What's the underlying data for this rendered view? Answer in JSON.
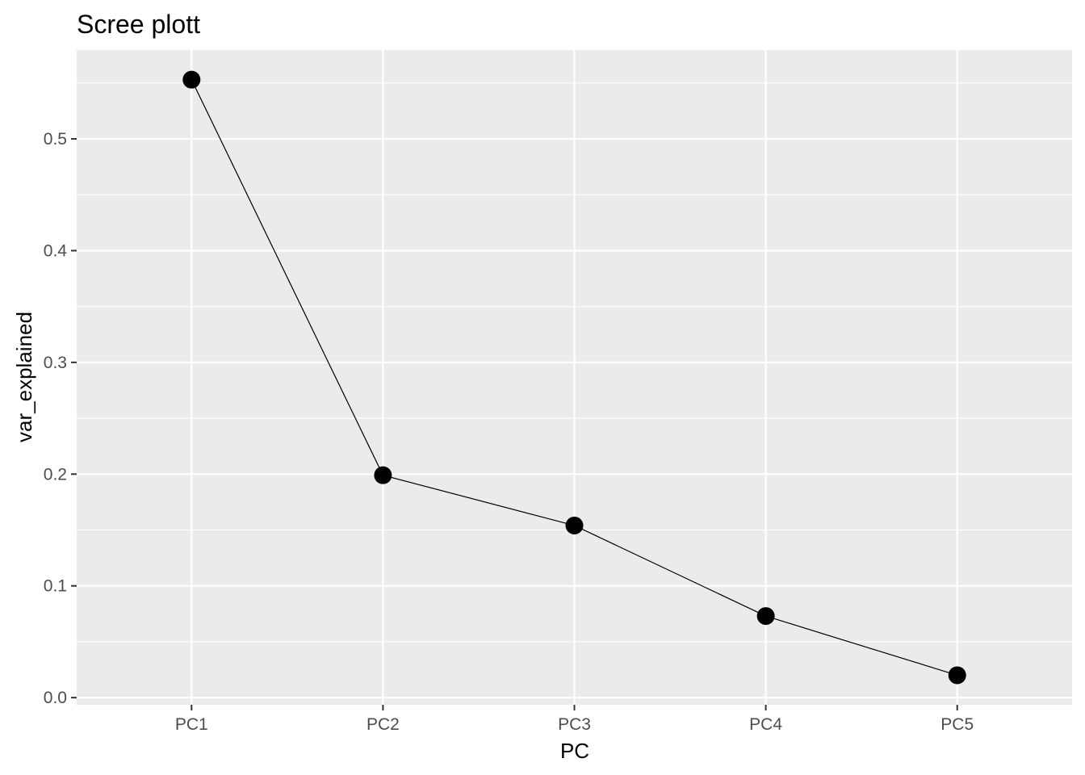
{
  "chart_data": {
    "type": "line",
    "title": "Scree plott",
    "xlabel": "PC",
    "ylabel": "var_explained",
    "categories": [
      "PC1",
      "PC2",
      "PC3",
      "PC4",
      "PC5"
    ],
    "series": [
      {
        "values": [
          0.553,
          0.199,
          0.154,
          0.073,
          0.02
        ]
      }
    ],
    "ylim": [
      -0.0064,
      0.5795
    ],
    "yticks": [
      0.0,
      0.1,
      0.2,
      0.3,
      0.4,
      0.5
    ],
    "ytick_labels": [
      "0.0",
      "0.1",
      "0.2",
      "0.3",
      "0.4",
      "0.5"
    ],
    "grid": true,
    "markers": "filled-circle",
    "colors": {
      "panel": "#ebebeb",
      "grid": "#ffffff",
      "line": "#000000",
      "point": "#000000",
      "tick_text": "#4d4d4d",
      "tick_mark": "#333333"
    }
  }
}
